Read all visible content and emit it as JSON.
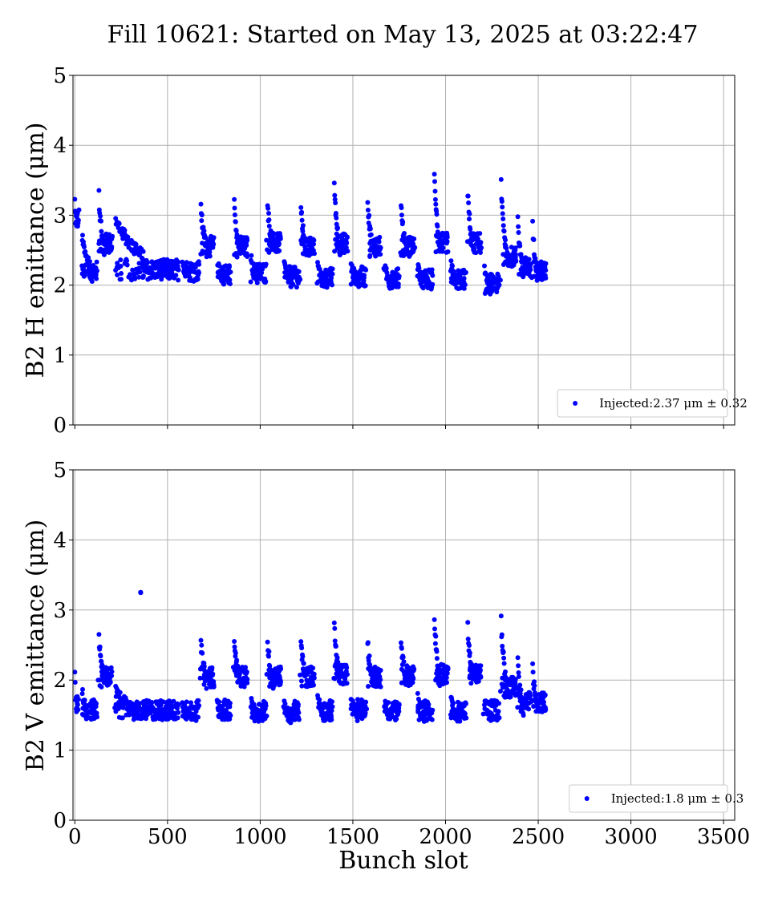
{
  "title": "Fill 10621: Started on May 13, 2025 at 03:22:47",
  "colors": {
    "marker": "#0000ff",
    "grid": "#b0b0b0",
    "axes": "#000000"
  },
  "chart_data": [
    {
      "type": "scatter",
      "id": "top",
      "ylabel": "B2 H emittance (μm)",
      "xlabel": "",
      "xlim": [
        -10,
        3560
      ],
      "ylim": [
        0,
        5
      ],
      "xticks": [
        0,
        500,
        1000,
        1500,
        2000,
        2500,
        3000,
        3500
      ],
      "xtick_labels_visible": false,
      "yticks": [
        0,
        1,
        2,
        3,
        4,
        5
      ],
      "grid": true,
      "legend": {
        "label": "Injected:2.37 μm ± 0.32",
        "loc": "lower right"
      },
      "series": [
        {
          "name": "Injected:2.37 μm ± 0.32",
          "color": "#0000ff",
          "clusters": [
            {
              "start": 0,
              "end": 20,
              "high_peak": 3.2,
              "high_tail": 2.8,
              "low_mean": 2.95,
              "count": 10
            },
            {
              "start": 40,
              "end": 120,
              "high_peak": 2.7,
              "high_tail": 2.3,
              "low_mean": 2.2,
              "count": 40
            },
            {
              "start": 130,
              "end": 200,
              "high_peak": 3.3,
              "high_tail": 2.45,
              "low_mean": 2.6,
              "count": 38
            },
            {
              "start": 220,
              "end": 560,
              "high_peak": 3.0,
              "high_tail": 2.4,
              "low_mean": 2.22,
              "count": 140
            },
            {
              "start": 580,
              "end": 670,
              "high_peak": 2.4,
              "high_tail": 2.2,
              "low_mean": 2.2,
              "count": 36
            },
            {
              "start": 680,
              "end": 750,
              "high_peak": 3.15,
              "high_tail": 2.5,
              "low_mean": 2.55,
              "count": 38
            },
            {
              "start": 770,
              "end": 840,
              "high_peak": 2.3,
              "high_tail": 2.1,
              "low_mean": 2.15,
              "count": 34
            },
            {
              "start": 860,
              "end": 930,
              "high_peak": 3.15,
              "high_tail": 2.5,
              "low_mean": 2.55,
              "count": 38
            },
            {
              "start": 950,
              "end": 1030,
              "high_peak": 2.4,
              "high_tail": 2.1,
              "low_mean": 2.18,
              "count": 36
            },
            {
              "start": 1040,
              "end": 1110,
              "high_peak": 3.2,
              "high_tail": 2.5,
              "low_mean": 2.6,
              "count": 38
            },
            {
              "start": 1130,
              "end": 1210,
              "high_peak": 2.3,
              "high_tail": 2.05,
              "low_mean": 2.12,
              "count": 36
            },
            {
              "start": 1220,
              "end": 1290,
              "high_peak": 3.15,
              "high_tail": 2.45,
              "low_mean": 2.55,
              "count": 38
            },
            {
              "start": 1310,
              "end": 1390,
              "high_peak": 2.3,
              "high_tail": 2.0,
              "low_mean": 2.1,
              "count": 36
            },
            {
              "start": 1400,
              "end": 1470,
              "high_peak": 3.5,
              "high_tail": 2.45,
              "low_mean": 2.6,
              "count": 40
            },
            {
              "start": 1490,
              "end": 1570,
              "high_peak": 2.3,
              "high_tail": 2.05,
              "low_mean": 2.12,
              "count": 36
            },
            {
              "start": 1580,
              "end": 1650,
              "high_peak": 3.25,
              "high_tail": 2.45,
              "low_mean": 2.55,
              "count": 38
            },
            {
              "start": 1670,
              "end": 1750,
              "high_peak": 2.3,
              "high_tail": 2.0,
              "low_mean": 2.1,
              "count": 36
            },
            {
              "start": 1760,
              "end": 1830,
              "high_peak": 3.2,
              "high_tail": 2.45,
              "low_mean": 2.55,
              "count": 38
            },
            {
              "start": 1850,
              "end": 1930,
              "high_peak": 2.3,
              "high_tail": 2.0,
              "low_mean": 2.08,
              "count": 36
            },
            {
              "start": 1940,
              "end": 2010,
              "high_peak": 3.6,
              "high_tail": 2.5,
              "low_mean": 2.6,
              "count": 40
            },
            {
              "start": 2030,
              "end": 2110,
              "high_peak": 2.3,
              "high_tail": 2.0,
              "low_mean": 2.08,
              "count": 36
            },
            {
              "start": 2120,
              "end": 2190,
              "high_peak": 3.35,
              "high_tail": 2.5,
              "low_mean": 2.6,
              "count": 38
            },
            {
              "start": 2210,
              "end": 2290,
              "high_peak": 2.2,
              "high_tail": 1.9,
              "low_mean": 2.02,
              "count": 36
            },
            {
              "start": 2300,
              "end": 2380,
              "high_peak": 3.5,
              "high_tail": 2.3,
              "low_mean": 2.4,
              "count": 40
            },
            {
              "start": 2390,
              "end": 2460,
              "high_peak": 3.0,
              "high_tail": 2.1,
              "low_mean": 2.25,
              "count": 38
            },
            {
              "start": 2470,
              "end": 2540,
              "high_peak": 2.85,
              "high_tail": 2.1,
              "low_mean": 2.2,
              "count": 36
            }
          ]
        }
      ]
    },
    {
      "type": "scatter",
      "id": "bottom",
      "ylabel": "B2 V emittance (μm)",
      "xlabel": "Bunch slot",
      "xlim": [
        -10,
        3560
      ],
      "ylim": [
        0,
        5
      ],
      "xticks": [
        0,
        500,
        1000,
        1500,
        2000,
        2500,
        3000,
        3500
      ],
      "xtick_labels": [
        "0",
        "500",
        "1000",
        "1500",
        "2000",
        "2500",
        "3000",
        "3500"
      ],
      "yticks": [
        0,
        1,
        2,
        3,
        4,
        5
      ],
      "grid": true,
      "legend": {
        "label": "Injected:1.8 μm ± 0.3",
        "loc": "lower right"
      },
      "series": [
        {
          "name": "Injected:1.8 μm ± 0.3",
          "color": "#0000ff",
          "clusters": [
            {
              "start": 0,
              "end": 20,
              "high_peak": 2.1,
              "high_tail": 1.6,
              "low_mean": 1.7,
              "count": 10
            },
            {
              "start": 40,
              "end": 120,
              "high_peak": 1.87,
              "high_tail": 1.5,
              "low_mean": 1.58,
              "count": 40
            },
            {
              "start": 130,
              "end": 200,
              "high_peak": 2.65,
              "high_tail": 1.95,
              "low_mean": 2.05,
              "count": 38
            },
            {
              "start": 220,
              "end": 560,
              "high_peak": 1.85,
              "high_tail": 1.5,
              "low_mean": 1.57,
              "count": 140
            },
            {
              "start": 580,
              "end": 670,
              "high_peak": 1.7,
              "high_tail": 1.5,
              "low_mean": 1.57,
              "count": 36
            },
            {
              "start": 680,
              "end": 750,
              "high_peak": 2.6,
              "high_tail": 1.95,
              "low_mean": 2.05,
              "count": 38
            },
            {
              "start": 770,
              "end": 840,
              "high_peak": 1.7,
              "high_tail": 1.5,
              "low_mean": 1.57,
              "count": 34
            },
            {
              "start": 860,
              "end": 930,
              "high_peak": 2.6,
              "high_tail": 1.95,
              "low_mean": 2.05,
              "count": 38
            },
            {
              "start": 950,
              "end": 1030,
              "high_peak": 1.7,
              "high_tail": 1.48,
              "low_mean": 1.56,
              "count": 36
            },
            {
              "start": 1040,
              "end": 1110,
              "high_peak": 2.6,
              "high_tail": 1.95,
              "low_mean": 2.05,
              "count": 38
            },
            {
              "start": 1130,
              "end": 1210,
              "high_peak": 1.65,
              "high_tail": 1.45,
              "low_mean": 1.55,
              "count": 36
            },
            {
              "start": 1220,
              "end": 1290,
              "high_peak": 2.55,
              "high_tail": 1.95,
              "low_mean": 2.05,
              "count": 38
            },
            {
              "start": 1310,
              "end": 1390,
              "high_peak": 1.78,
              "high_tail": 1.48,
              "low_mean": 1.56,
              "count": 36
            },
            {
              "start": 1400,
              "end": 1470,
              "high_peak": 2.85,
              "high_tail": 1.98,
              "low_mean": 2.08,
              "count": 40
            },
            {
              "start": 1490,
              "end": 1570,
              "high_peak": 1.72,
              "high_tail": 1.5,
              "low_mean": 1.58,
              "count": 36
            },
            {
              "start": 1580,
              "end": 1650,
              "high_peak": 2.58,
              "high_tail": 1.95,
              "low_mean": 2.05,
              "count": 38
            },
            {
              "start": 1670,
              "end": 1750,
              "high_peak": 1.68,
              "high_tail": 1.48,
              "low_mean": 1.56,
              "count": 36
            },
            {
              "start": 1760,
              "end": 1830,
              "high_peak": 2.55,
              "high_tail": 1.98,
              "low_mean": 2.06,
              "count": 38
            },
            {
              "start": 1850,
              "end": 1930,
              "high_peak": 1.72,
              "high_tail": 1.48,
              "low_mean": 1.56,
              "count": 36
            },
            {
              "start": 1940,
              "end": 2010,
              "high_peak": 2.95,
              "high_tail": 1.95,
              "low_mean": 2.08,
              "count": 40
            },
            {
              "start": 2030,
              "end": 2110,
              "high_peak": 1.7,
              "high_tail": 1.48,
              "low_mean": 1.56,
              "count": 36
            },
            {
              "start": 2120,
              "end": 2190,
              "high_peak": 2.75,
              "high_tail": 1.98,
              "low_mean": 2.08,
              "count": 38
            },
            {
              "start": 2210,
              "end": 2290,
              "high_peak": 1.7,
              "high_tail": 1.48,
              "low_mean": 1.57,
              "count": 36
            },
            {
              "start": 2300,
              "end": 2380,
              "high_peak": 2.9,
              "high_tail": 1.8,
              "low_mean": 1.9,
              "count": 40
            },
            {
              "start": 2390,
              "end": 2460,
              "high_peak": 2.3,
              "high_tail": 1.55,
              "low_mean": 1.7,
              "count": 38
            },
            {
              "start": 2470,
              "end": 2540,
              "high_peak": 2.2,
              "high_tail": 1.55,
              "low_mean": 1.68,
              "count": 36
            }
          ],
          "outliers": [
            {
              "x": 355,
              "y": 3.25
            }
          ]
        }
      ]
    }
  ]
}
